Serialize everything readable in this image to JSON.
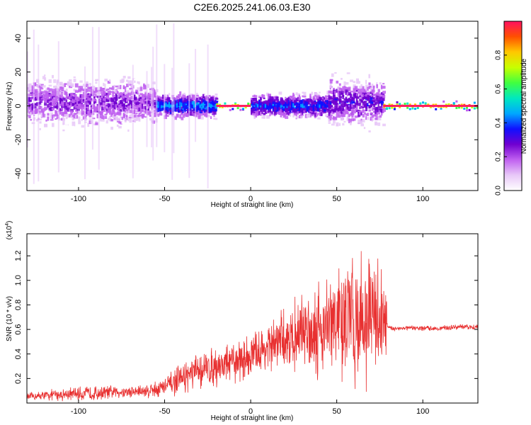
{
  "title": "C2E6.2025.241.06.03.E30",
  "colors": {
    "snr_line": "#e83030",
    "colormap": [
      "#ffffff",
      "#e8c8f8",
      "#c060f0",
      "#7000d0",
      "#1010ff",
      "#00a8ff",
      "#00e8c0",
      "#40ff40",
      "#c8ff00",
      "#ffc800",
      "#ff5000",
      "#ff1060"
    ],
    "ridge": "#ff2060"
  },
  "chart_data": [
    {
      "type": "heatmap",
      "name": "spectrogram",
      "xlabel": "Height of straight line (km)",
      "ylabel": "Frequency (Hz)",
      "xlim": [
        -130,
        132
      ],
      "ylim": [
        -50,
        50
      ],
      "xticks": [
        "-100",
        "-50",
        "0",
        "50",
        "100"
      ],
      "xtick_values": [
        -100,
        -50,
        0,
        50,
        100
      ],
      "yticks": [
        "-40",
        "-20",
        "0",
        "20",
        "40"
      ],
      "ytick_values": [
        -40,
        -20,
        0,
        20,
        40
      ],
      "colorbar": {
        "label": "Normalized spectral amplitude",
        "range": [
          0,
          1
        ],
        "ticks": [
          "0.0",
          "0.2",
          "0.4",
          "0.6",
          "0.8"
        ],
        "tick_values": [
          0.0,
          0.2,
          0.4,
          0.6,
          0.8
        ]
      },
      "segments": [
        {
          "x_start": -130,
          "x_end": -55,
          "freq_center": 2,
          "freq_spread": 12,
          "amplitude": 0.25
        },
        {
          "x_start": -55,
          "x_end": -20,
          "freq_center": 0,
          "freq_spread": 6,
          "amplitude": 0.45
        },
        {
          "x_start": -20,
          "x_end": 0,
          "freq_center": 0,
          "freq_spread": 2,
          "amplitude": 0.95
        },
        {
          "x_start": 0,
          "x_end": 45,
          "freq_center": 0,
          "freq_spread": 6,
          "amplitude": 0.4
        },
        {
          "x_start": 45,
          "x_end": 77,
          "freq_center": 2,
          "freq_spread": 12,
          "amplitude": 0.3
        },
        {
          "x_start": 77,
          "x_end": 132,
          "freq_center": 0,
          "freq_spread": 2,
          "amplitude": 0.98
        }
      ]
    },
    {
      "type": "line",
      "name": "snr",
      "xlabel": "Height of straight line (km)",
      "ylabel": "SNR (10 * v/v)",
      "multiplier": "(x10",
      "multiplier_exp": "4",
      "xlim": [
        -130,
        132
      ],
      "ylim": [
        0,
        1.38
      ],
      "xticks": [
        "-100",
        "-50",
        "0",
        "50",
        "100"
      ],
      "xtick_values": [
        -100,
        -50,
        0,
        50,
        100
      ],
      "yticks": [
        "0.2",
        "0.4",
        "0.6",
        "0.8",
        "1.0",
        "1.2"
      ],
      "ytick_values": [
        0.2,
        0.4,
        0.6,
        0.8,
        1.0,
        1.2
      ],
      "envelope": {
        "x": [
          -130,
          -110,
          -90,
          -80,
          -70,
          -60,
          -50,
          -40,
          -30,
          -20,
          -10,
          0,
          10,
          20,
          30,
          40,
          50,
          60,
          70,
          78,
          80,
          90,
          100,
          110,
          120,
          132
        ],
        "mean": [
          0.05,
          0.07,
          0.08,
          0.09,
          0.09,
          0.1,
          0.13,
          0.2,
          0.26,
          0.3,
          0.33,
          0.38,
          0.45,
          0.52,
          0.58,
          0.62,
          0.65,
          0.68,
          0.7,
          0.7,
          0.61,
          0.61,
          0.61,
          0.61,
          0.62,
          0.62
        ],
        "spread": [
          0.03,
          0.05,
          0.06,
          0.05,
          0.05,
          0.06,
          0.08,
          0.12,
          0.14,
          0.16,
          0.16,
          0.18,
          0.2,
          0.24,
          0.3,
          0.4,
          0.45,
          0.55,
          0.5,
          0.45,
          0.02,
          0.02,
          0.02,
          0.02,
          0.02,
          0.02
        ]
      }
    }
  ]
}
